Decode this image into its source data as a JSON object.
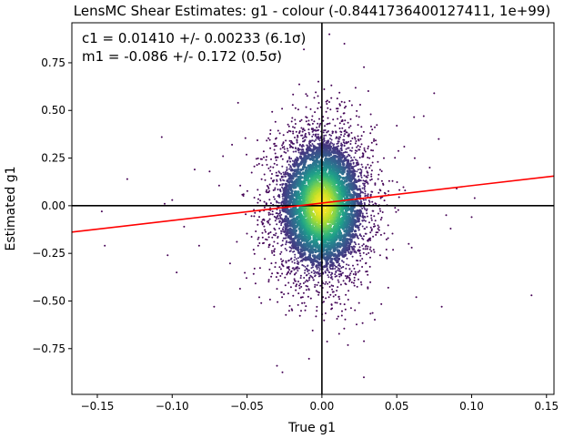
{
  "chart_data": {
    "type": "scatter",
    "title": "LensMC Shear Estimates: g1  - colour (-0.8441736400127411, 1e+99)",
    "xlabel": "True g1",
    "ylabel": "Estimated g1",
    "xlim": [
      -0.167,
      0.155
    ],
    "ylim": [
      -0.99,
      0.96
    ],
    "xticks": [
      -0.15,
      -0.1,
      -0.05,
      0.0,
      0.05,
      0.1,
      0.15
    ],
    "xtick_labels": [
      "−0.15",
      "−0.10",
      "−0.05",
      "0.00",
      "0.05",
      "0.10",
      "0.15"
    ],
    "yticks": [
      -0.75,
      -0.5,
      -0.25,
      0.0,
      0.25,
      0.5,
      0.75
    ],
    "ytick_labels": [
      "−0.75",
      "−0.50",
      "−0.25",
      "0.00",
      "0.25",
      "0.50",
      "0.75"
    ],
    "annotation_c1": "c1 = 0.01410 +/- 0.00233 (6.1σ)",
    "annotation_m1": "m1 = -0.086 +/- 0.172 (0.5σ)",
    "fit_line": {
      "slope": 0.914,
      "intercept": 0.0141,
      "color": "#ff0000"
    },
    "reference_lines": {
      "x": 0.0,
      "y": 0.0,
      "color": "#000000"
    },
    "point_distribution": {
      "x_sigma": 0.017,
      "y_sigma": 0.21,
      "colormap": "viridis"
    },
    "outlier_points": [
      [
        -0.147,
        -0.03
      ],
      [
        -0.145,
        -0.21
      ],
      [
        -0.13,
        0.14
      ],
      [
        -0.107,
        0.36
      ],
      [
        -0.105,
        0.01
      ],
      [
        -0.1,
        0.03
      ],
      [
        -0.103,
        -0.26
      ],
      [
        -0.097,
        -0.35
      ],
      [
        -0.085,
        0.19
      ],
      [
        -0.082,
        -0.21
      ],
      [
        -0.075,
        0.18
      ],
      [
        -0.072,
        -0.53
      ],
      [
        -0.066,
        0.26
      ],
      [
        -0.06,
        0.32
      ],
      [
        -0.056,
        0.54
      ],
      [
        0.05,
        0.42
      ],
      [
        0.055,
        0.31
      ],
      [
        0.062,
        0.25
      ],
      [
        0.068,
        0.47
      ],
      [
        0.075,
        0.59
      ],
      [
        0.078,
        0.35
      ],
      [
        0.083,
        -0.05
      ],
      [
        0.086,
        -0.12
      ],
      [
        0.09,
        0.09
      ],
      [
        0.1,
        -0.06
      ],
      [
        0.102,
        0.04
      ],
      [
        0.08,
        -0.53
      ],
      [
        0.14,
        -0.47
      ],
      [
        0.063,
        -0.48
      ],
      [
        0.058,
        -0.2
      ],
      [
        0.028,
        -0.9
      ],
      [
        -0.03,
        -0.84
      ],
      [
        0.015,
        0.85
      ],
      [
        0.005,
        0.9
      ],
      [
        -0.012,
        0.82
      ],
      [
        0.045,
        0.13
      ],
      [
        0.06,
        -0.22
      ],
      [
        -0.045,
        -0.33
      ],
      [
        0.072,
        0.2
      ],
      [
        -0.092,
        -0.11
      ]
    ]
  }
}
